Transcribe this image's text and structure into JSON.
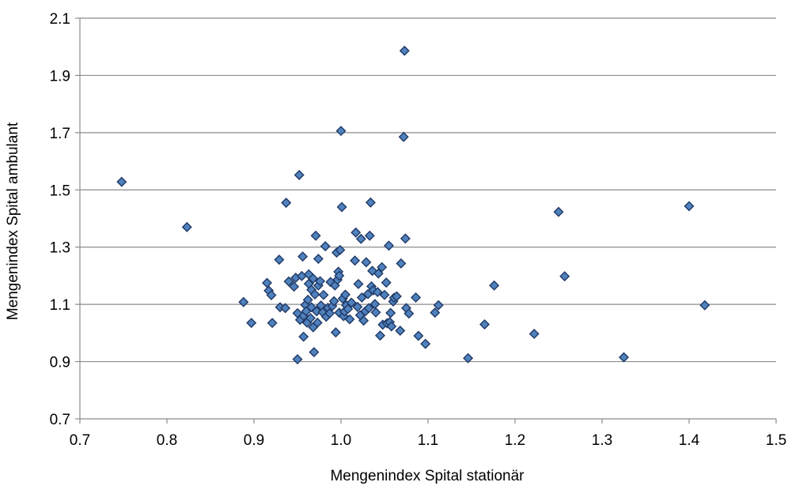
{
  "chart_data": {
    "type": "scatter",
    "xlabel": "Mengenindex Spital stationär",
    "ylabel": "Mengenindex Spital ambulant",
    "xlim": [
      0.7,
      1.5
    ],
    "ylim": [
      0.7,
      2.1
    ],
    "xticks": [
      "0.7",
      "0.8",
      "0.9",
      "1.0",
      "1.1",
      "1.2",
      "1.3",
      "1.4",
      "1.5"
    ],
    "yticks": [
      "0.7",
      "0.9",
      "1.1",
      "1.3",
      "1.5",
      "1.7",
      "1.9",
      "2.1"
    ],
    "grid": "horizontal",
    "legend": "none",
    "marker": "diamond",
    "colors": {
      "marker_fill": "#4f81bd",
      "marker_stroke": "#1f3864",
      "grid": "#8c8c8c",
      "axis": "#8c8c8c"
    },
    "points": [
      [
        0.748,
        1.528
      ],
      [
        0.823,
        1.37
      ],
      [
        0.888,
        1.108
      ],
      [
        0.897,
        1.035
      ],
      [
        0.915,
        1.175
      ],
      [
        0.917,
        1.148
      ],
      [
        0.92,
        1.132
      ],
      [
        0.921,
        1.035
      ],
      [
        0.929,
        1.256
      ],
      [
        0.93,
        1.09
      ],
      [
        0.936,
        1.087
      ],
      [
        0.937,
        1.455
      ],
      [
        0.94,
        1.18
      ],
      [
        0.946,
        1.162
      ],
      [
        0.948,
        1.193
      ],
      [
        0.95,
        1.069
      ],
      [
        0.95,
        0.908
      ],
      [
        0.952,
        1.552
      ],
      [
        0.953,
        1.046
      ],
      [
        0.955,
        1.199
      ],
      [
        0.956,
        1.267
      ],
      [
        0.957,
        1.06
      ],
      [
        0.957,
        0.987
      ],
      [
        0.959,
        1.098
      ],
      [
        0.96,
        1.076
      ],
      [
        0.961,
        1.036
      ],
      [
        0.962,
        1.116
      ],
      [
        0.963,
        1.205
      ],
      [
        0.963,
        1.172
      ],
      [
        0.965,
        1.052
      ],
      [
        0.966,
        1.09
      ],
      [
        0.966,
        1.151
      ],
      [
        0.968,
        1.02
      ],
      [
        0.968,
        1.19
      ],
      [
        0.969,
        0.933
      ],
      [
        0.97,
        1.135
      ],
      [
        0.971,
        1.34
      ],
      [
        0.972,
        1.076
      ],
      [
        0.973,
        1.036
      ],
      [
        0.974,
        1.166
      ],
      [
        0.974,
        1.259
      ],
      [
        0.976,
        1.181
      ],
      [
        0.977,
        1.096
      ],
      [
        0.979,
        1.072
      ],
      [
        0.98,
        1.133
      ],
      [
        0.982,
        1.303
      ],
      [
        0.983,
        1.057
      ],
      [
        0.985,
        1.088
      ],
      [
        0.987,
        1.069
      ],
      [
        0.988,
        1.178
      ],
      [
        0.99,
        1.094
      ],
      [
        0.992,
        1.111
      ],
      [
        0.993,
        1.166
      ],
      [
        0.994,
        1.002
      ],
      [
        0.995,
        1.281
      ],
      [
        0.996,
        1.186
      ],
      [
        0.997,
        1.214
      ],
      [
        0.998,
        1.2
      ],
      [
        0.998,
        1.071
      ],
      [
        0.999,
        1.29
      ],
      [
        1.0,
        1.706
      ],
      [
        1.001,
        1.44
      ],
      [
        1.002,
        1.12
      ],
      [
        1.003,
        1.059
      ],
      [
        1.004,
        1.075
      ],
      [
        1.005,
        1.134
      ],
      [
        1.006,
        1.097
      ],
      [
        1.008,
        1.084
      ],
      [
        1.01,
        1.048
      ],
      [
        1.012,
        1.106
      ],
      [
        1.016,
        1.253
      ],
      [
        1.017,
        1.351
      ],
      [
        1.019,
        1.091
      ],
      [
        1.02,
        1.171
      ],
      [
        1.022,
        1.062
      ],
      [
        1.023,
        1.329
      ],
      [
        1.024,
        1.124
      ],
      [
        1.026,
        1.043
      ],
      [
        1.028,
        1.076
      ],
      [
        1.029,
        1.247
      ],
      [
        1.031,
        1.136
      ],
      [
        1.032,
        1.087
      ],
      [
        1.033,
        1.34
      ],
      [
        1.034,
        1.456
      ],
      [
        1.035,
        1.163
      ],
      [
        1.036,
        1.217
      ],
      [
        1.037,
        1.149
      ],
      [
        1.039,
        1.101
      ],
      [
        1.04,
        1.072
      ],
      [
        1.042,
        1.143
      ],
      [
        1.043,
        1.208
      ],
      [
        1.045,
        0.991
      ],
      [
        1.047,
        1.23
      ],
      [
        1.048,
        1.029
      ],
      [
        1.05,
        1.133
      ],
      [
        1.052,
        1.176
      ],
      [
        1.053,
        1.034
      ],
      [
        1.055,
        1.305
      ],
      [
        1.056,
        1.038
      ],
      [
        1.057,
        1.07
      ],
      [
        1.058,
        1.023
      ],
      [
        1.06,
        1.11
      ],
      [
        1.061,
        1.123
      ],
      [
        1.064,
        1.128
      ],
      [
        1.068,
        1.008
      ],
      [
        1.069,
        1.243
      ],
      [
        1.072,
        1.685
      ],
      [
        1.073,
        1.986
      ],
      [
        1.074,
        1.33
      ],
      [
        1.075,
        1.087
      ],
      [
        1.078,
        1.068
      ],
      [
        1.086,
        1.124
      ],
      [
        1.089,
        0.99
      ],
      [
        1.097,
        0.962
      ],
      [
        1.108,
        1.071
      ],
      [
        1.112,
        1.097
      ],
      [
        1.146,
        0.912
      ],
      [
        1.165,
        1.03
      ],
      [
        1.176,
        1.166
      ],
      [
        1.222,
        0.997
      ],
      [
        1.25,
        1.423
      ],
      [
        1.257,
        1.198
      ],
      [
        1.325,
        0.915
      ],
      [
        1.4,
        1.443
      ],
      [
        1.418,
        1.097
      ]
    ]
  }
}
